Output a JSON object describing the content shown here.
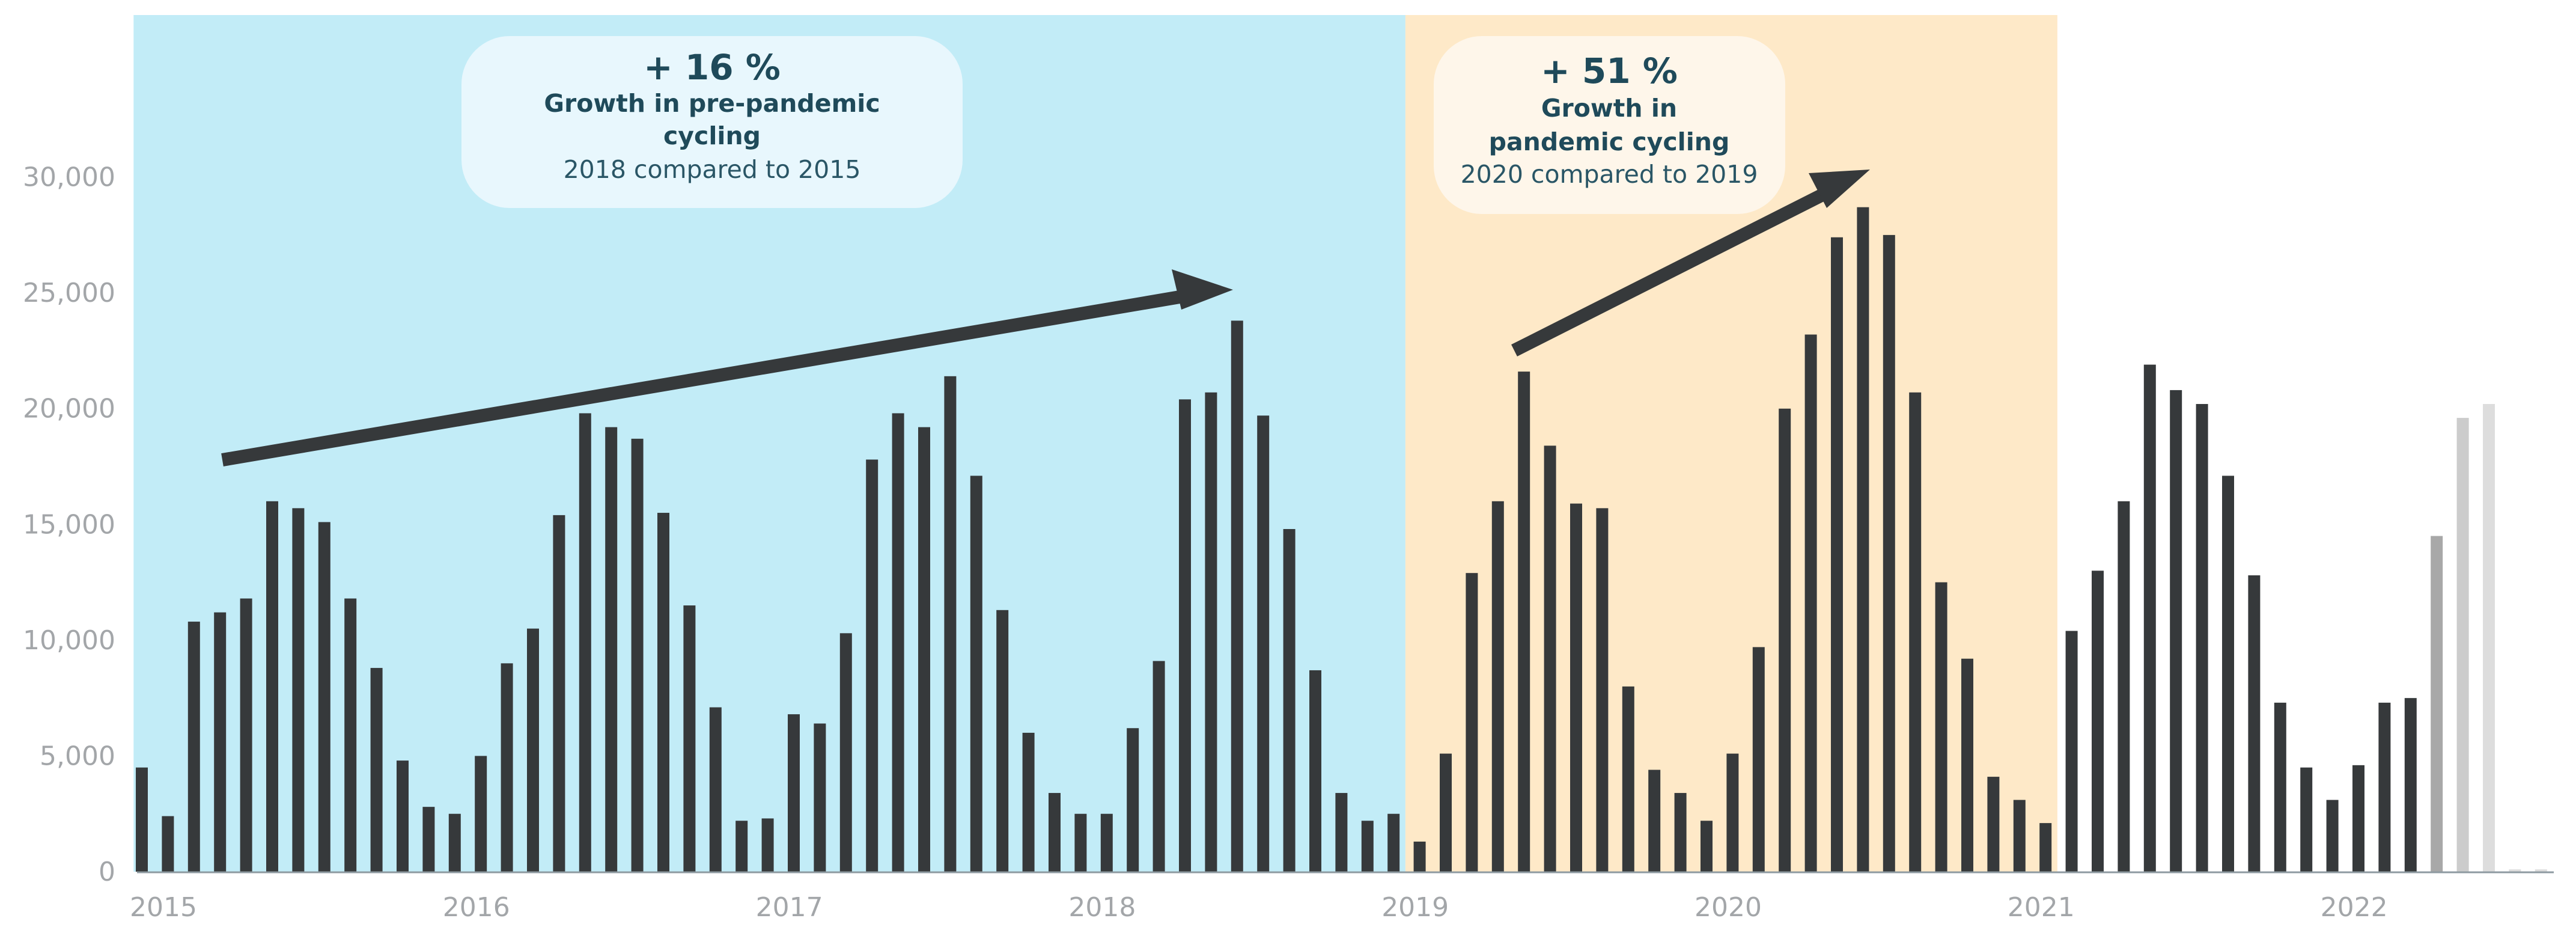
{
  "chart_data": {
    "type": "bar",
    "x_tick_labels": [
      "2015",
      "2016",
      "2017",
      "2018",
      "2019",
      "2020",
      "2021",
      "2022"
    ],
    "y_tick_labels": [
      "0",
      "5,000",
      "10,000",
      "15,000",
      "20,000",
      "25,000",
      "30,000"
    ],
    "y_ticks": [
      0,
      5000,
      10000,
      15000,
      20000,
      25000,
      30000
    ],
    "ylim": [
      0,
      37000
    ],
    "start_year": 2015,
    "values": [
      4500,
      2400,
      10800,
      11200,
      11800,
      16000,
      15700,
      15100,
      11800,
      8800,
      4800,
      2800,
      2500,
      5000,
      9000,
      10500,
      15400,
      19800,
      19200,
      18700,
      15500,
      11500,
      7100,
      2200,
      2300,
      6800,
      6400,
      10300,
      17800,
      19800,
      19200,
      21400,
      17100,
      11300,
      6000,
      3400,
      2500,
      2500,
      6200,
      9100,
      20400,
      20700,
      23800,
      19700,
      14800,
      8700,
      3400,
      2200,
      2500,
      1300,
      5100,
      12900,
      16000,
      21600,
      18400,
      15900,
      15700,
      8000,
      4400,
      3400,
      2200,
      5100,
      9700,
      20000,
      23200,
      27400,
      28700,
      27500,
      20700,
      12500,
      9200,
      4100,
      3100,
      2100,
      10400,
      13000,
      16000,
      21900,
      20800,
      20200,
      17100,
      12800,
      7300,
      4500,
      3100,
      4600,
      7300,
      7500,
      14500,
      19600,
      20200,
      100,
      100
    ],
    "preliminary_start_index": 88,
    "grid": false,
    "legend": "none",
    "colors": {
      "bar": "#36393b",
      "bar_light_1": "#a8a8a8",
      "bar_light_2": "#cccccc",
      "bar_light_3": "#dddddd",
      "pre_pandemic_band": "#c2ecf7",
      "pandemic_band": "#fee9c8",
      "axis": "#8e9aa1",
      "arrow": "#36393b",
      "callout_pre": "#e8f7fd",
      "callout_pandemic": "#fef6ea"
    },
    "bands": [
      {
        "name": "pre-pandemic",
        "from_index": 0,
        "to_index": 48
      },
      {
        "name": "pandemic",
        "from_index": 49,
        "to_index": 73
      }
    ],
    "annotations": [
      {
        "id": "pre-pandemic",
        "value_text": "+ 16 %",
        "title_lines": [
          "Growth in pre-pandemic",
          "cycling"
        ],
        "subtitle": "2018 compared to 2015"
      },
      {
        "id": "pandemic",
        "value_text": "+ 51 %",
        "title_lines": [
          "Growth in",
          "pandemic cycling"
        ],
        "subtitle": "2020 compared to 2019"
      }
    ]
  }
}
